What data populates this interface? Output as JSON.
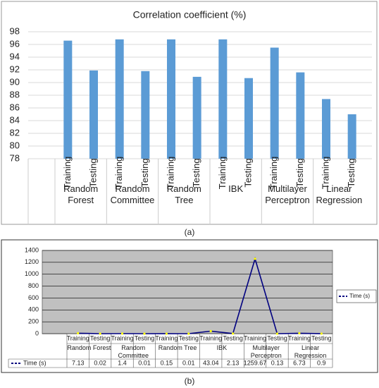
{
  "chart_data": [
    {
      "type": "bar",
      "title": "Correlation coefficient (%)",
      "caption": "(a)",
      "categories": [
        "Training",
        "Testing",
        "Training",
        "Testing",
        "Training",
        "Testing",
        "Training",
        "Testing",
        "Training",
        "Testing",
        "Training",
        "Testing"
      ],
      "groups": [
        "Random Forest",
        "Random Committee",
        "Random Tree",
        "IBK",
        "Multilayer Perceptron",
        "Linear Regression"
      ],
      "values": [
        96.6,
        91.9,
        96.8,
        91.8,
        96.8,
        90.9,
        96.8,
        90.7,
        95.5,
        91.6,
        87.4,
        85.0
      ],
      "color": "#5b9bd5",
      "ylim": [
        78,
        98
      ],
      "yticks": [
        78,
        80,
        82,
        84,
        86,
        88,
        90,
        92,
        94,
        96,
        98
      ],
      "grid": true
    },
    {
      "type": "line",
      "caption": "(b)",
      "categories": [
        "Training",
        "Testing",
        "Training",
        "Testing",
        "Training",
        "Testing",
        "Training",
        "Testing",
        "Training",
        "Testing",
        "Training",
        "Testing"
      ],
      "groups": [
        "Random Forest",
        "Random Committee",
        "Random Tree",
        "IBK",
        "Multilayer Perceptron",
        "Linear Regression"
      ],
      "series": [
        {
          "name": "Time (s)",
          "color": "#000080",
          "marker_color": "#ffff00",
          "values": [
            7.13,
            0.02,
            1.4,
            0.01,
            0.15,
            0.01,
            43.04,
            2.13,
            1259.67,
            0.13,
            6.73,
            0.9
          ]
        }
      ],
      "ylim": [
        0,
        1400
      ],
      "yticks": [
        0,
        200,
        400,
        600,
        800,
        1000,
        1200,
        1400
      ],
      "grid": true,
      "legend": "right",
      "plot_background": "#c0c0c0"
    }
  ]
}
